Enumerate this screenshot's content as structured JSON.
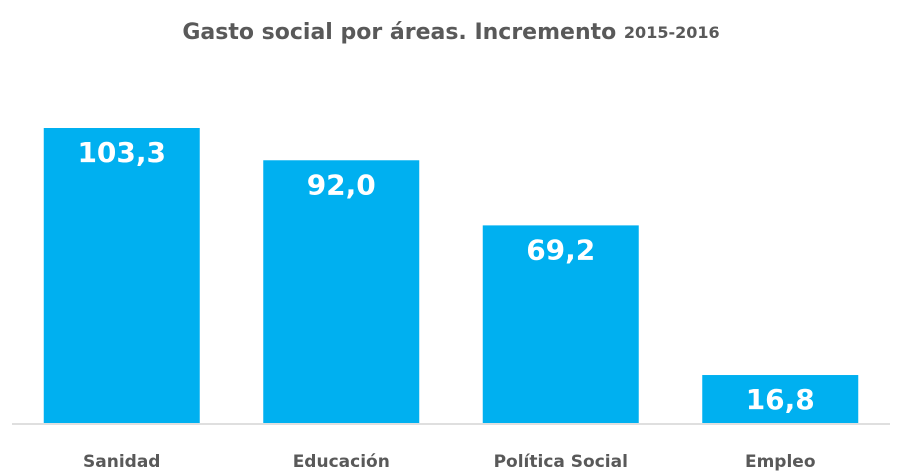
{
  "chart_data": {
    "type": "bar",
    "title": "Gasto social por áreas. Incremento",
    "title_period": "2015-2016",
    "categories": [
      "Sanidad",
      "Educación",
      "Política Social",
      "Empleo"
    ],
    "values": [
      103.3,
      92.0,
      69.2,
      16.8
    ],
    "value_labels": [
      "103,3",
      "92,0",
      "69,2",
      "16,8"
    ],
    "color": "#00b0f0"
  }
}
